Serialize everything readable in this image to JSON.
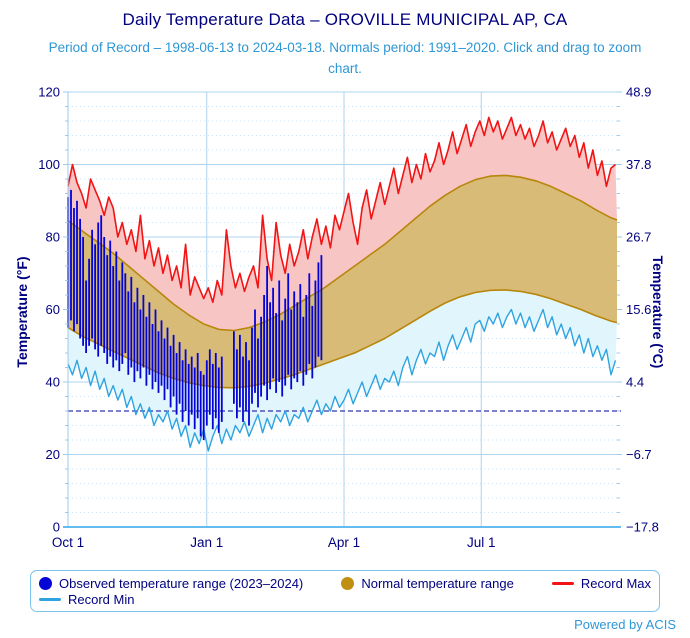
{
  "title": "Daily Temperature Data – OROVILLE MUNICIPAL AP, CA",
  "subtitle": "Period of Record – 1998-06-13 to 2024-03-18. Normals period: 1991–2020. Click and drag to zoom chart.",
  "footer": "Powered by ACIS",
  "colors": {
    "title_text": "#000080",
    "subtitle_text": "#2e97d5",
    "axis_text": "#000080",
    "grid_major": "#aed3ee",
    "grid_minor": "#c9e2f5",
    "axis_line": "#9ccbee",
    "axis_bottom": "#63bbf0",
    "record_max_line": "#f21414",
    "record_max_fill": "#f8c5c5",
    "record_min_line": "#2fa3e0",
    "record_min_fill": "#e1f6fc",
    "normal_fill": "#d8bb76",
    "normal_border": "#b8860b",
    "observed_bar": "#0404d6",
    "freezing_line": "#0000a0",
    "legend_border": "#7cc4ee"
  },
  "axes": {
    "left": {
      "title": "Temperature (°F)",
      "ticks": [
        0,
        20,
        40,
        60,
        80,
        100,
        120
      ]
    },
    "right": {
      "title": "Temperature (°C)",
      "ticks": [
        {
          "f": 0,
          "label": "−17.8"
        },
        {
          "f": 20,
          "label": "−6.7"
        },
        {
          "f": 40,
          "label": "4.4"
        },
        {
          "f": 60,
          "label": "15.6"
        },
        {
          "f": 80,
          "label": "26.7"
        },
        {
          "f": 100,
          "label": "37.8"
        },
        {
          "f": 120,
          "label": "48.9"
        }
      ]
    },
    "x": {
      "ticks": [
        {
          "day": 0,
          "label": "Oct 1"
        },
        {
          "day": 92,
          "label": "Jan 1"
        },
        {
          "day": 183,
          "label": "Apr 1"
        },
        {
          "day": 274,
          "label": "Jul 1"
        }
      ]
    }
  },
  "legend": {
    "observed": "Observed temperature range (2023–2024)",
    "normal": "Normal temperature range",
    "record_max": "Record Max",
    "record_min": "Record Min"
  },
  "chart_data": {
    "type": "area",
    "title": "Daily Temperature Data – OROVILLE MUNICIPAL AP, CA",
    "x_unit": "days since Oct 1",
    "x_range_days": [
      0,
      364
    ],
    "ylim_f": [
      0,
      120
    ],
    "ylim_c": [
      -17.8,
      48.9
    ],
    "grid": true,
    "freezing_line_f": 32,
    "series": [
      {
        "name": "Record Max",
        "type": "line",
        "color": "#f21414",
        "start": 0,
        "step": 3,
        "values": [
          94,
          100,
          95,
          92,
          88,
          96,
          93,
          90,
          86,
          91,
          88,
          80,
          84,
          78,
          82,
          76,
          86,
          74,
          79,
          72,
          77,
          70,
          75,
          68,
          72,
          66,
          78,
          64,
          69,
          66,
          63,
          66,
          62,
          68,
          64,
          82,
          72,
          66,
          70,
          65,
          69,
          72,
          66,
          86,
          74,
          68,
          84,
          75,
          70,
          78,
          72,
          76,
          82,
          74,
          80,
          85,
          78,
          83,
          77,
          86,
          82,
          87,
          92,
          84,
          78,
          88,
          93,
          85,
          90,
          95,
          89,
          94,
          99,
          92,
          97,
          102,
          95,
          100,
          96,
          103,
          98,
          101,
          106,
          100,
          104,
          109,
          103,
          107,
          111,
          105,
          109,
          112,
          108,
          113,
          109,
          112,
          107,
          110,
          113,
          108,
          111,
          107,
          110,
          105,
          108,
          112,
          106,
          109,
          104,
          107,
          110,
          105,
          108,
          102,
          106,
          99,
          104,
          97,
          101,
          94,
          99,
          100
        ]
      },
      {
        "name": "Record Min",
        "type": "line",
        "color": "#2fa3e0",
        "start": 0,
        "step": 3,
        "values": [
          45,
          42,
          46,
          41,
          44,
          39,
          43,
          38,
          41,
          36,
          39,
          35,
          38,
          33,
          36,
          31,
          34,
          30,
          33,
          28,
          31,
          29,
          32,
          27,
          30,
          25,
          28,
          22,
          26,
          23,
          27,
          21,
          25,
          28,
          23,
          27,
          24,
          28,
          26,
          29,
          25,
          28,
          31,
          26,
          30,
          27,
          31,
          29,
          32,
          28,
          31,
          30,
          33,
          29,
          32,
          35,
          31,
          34,
          32,
          36,
          33,
          35,
          38,
          34,
          37,
          40,
          36,
          39,
          42,
          38,
          41,
          40,
          43,
          39,
          44,
          47,
          42,
          46,
          49,
          45,
          48,
          47,
          51,
          46,
          50,
          53,
          49,
          52,
          55,
          51,
          56,
          57,
          54,
          58,
          56,
          59,
          55,
          58,
          60,
          56,
          59,
          55,
          58,
          54,
          57,
          60,
          55,
          58,
          53,
          56,
          52,
          55,
          50,
          53,
          48,
          52,
          47,
          50,
          46,
          49,
          42,
          46
        ]
      },
      {
        "name": "Normal Max",
        "type": "line",
        "color": "#b8860b",
        "days": [
          0,
          10,
          20,
          30,
          40,
          50,
          60,
          70,
          80,
          90,
          100,
          110,
          120,
          130,
          140,
          150,
          160,
          170,
          180,
          190,
          200,
          210,
          220,
          230,
          240,
          250,
          260,
          270,
          280,
          290,
          300,
          310,
          320,
          330,
          340,
          350,
          360,
          364
        ],
        "values": [
          84.5,
          81.5,
          78.5,
          75.5,
          72,
          68.5,
          65,
          61.5,
          58.5,
          56,
          54.5,
          54.2,
          55,
          56.5,
          58.5,
          61,
          63.5,
          66,
          69,
          72,
          75,
          78,
          81.5,
          85,
          88.5,
          91.5,
          94,
          95.8,
          96.8,
          97,
          96.5,
          95.5,
          94,
          92,
          90,
          87.5,
          85.3,
          84.7
        ]
      },
      {
        "name": "Normal Min",
        "type": "line",
        "color": "#b8860b",
        "days": [
          0,
          10,
          20,
          30,
          40,
          50,
          60,
          70,
          80,
          90,
          100,
          110,
          120,
          130,
          140,
          150,
          160,
          170,
          180,
          190,
          200,
          210,
          220,
          230,
          240,
          250,
          260,
          270,
          280,
          290,
          300,
          310,
          320,
          330,
          340,
          350,
          360,
          364
        ],
        "values": [
          55,
          52.5,
          50.5,
          48.5,
          46.5,
          44.5,
          42.5,
          41,
          39.8,
          39,
          38.5,
          38.4,
          38.8,
          39.6,
          40.8,
          42,
          43.5,
          45,
          46.5,
          48,
          50,
          52,
          54.5,
          57,
          59.5,
          61.8,
          63.5,
          64.7,
          65.3,
          65.4,
          65,
          64.2,
          63,
          61.5,
          60,
          58.3,
          56.8,
          56.4
        ]
      },
      {
        "name": "Observed temperature range (2023–2024)",
        "type": "bar-range",
        "color": "#0404d6",
        "points_day_low_high": [
          [
            0,
            55,
            91
          ],
          [
            2,
            57,
            93
          ],
          [
            4,
            54,
            88
          ],
          [
            6,
            56,
            90
          ],
          [
            8,
            52,
            85
          ],
          [
            10,
            50,
            80
          ],
          [
            12,
            48,
            68
          ],
          [
            14,
            50,
            74
          ],
          [
            16,
            52,
            82
          ],
          [
            18,
            49,
            78
          ],
          [
            20,
            47,
            84
          ],
          [
            22,
            50,
            86
          ],
          [
            24,
            48,
            80
          ],
          [
            26,
            45,
            75
          ],
          [
            28,
            47,
            79
          ],
          [
            30,
            44,
            72
          ],
          [
            32,
            46,
            76
          ],
          [
            34,
            43,
            68
          ],
          [
            36,
            45,
            73
          ],
          [
            38,
            48,
            70
          ],
          [
            40,
            42,
            65
          ],
          [
            42,
            44,
            69
          ],
          [
            44,
            40,
            62
          ],
          [
            46,
            43,
            66
          ],
          [
            48,
            41,
            60
          ],
          [
            50,
            44,
            64
          ],
          [
            52,
            39,
            58
          ],
          [
            54,
            42,
            62
          ],
          [
            56,
            38,
            56
          ],
          [
            58,
            40,
            60
          ],
          [
            60,
            37,
            54
          ],
          [
            62,
            39,
            57
          ],
          [
            64,
            35,
            52
          ],
          [
            66,
            38,
            55
          ],
          [
            68,
            33,
            50
          ],
          [
            70,
            36,
            53
          ],
          [
            72,
            31,
            48
          ],
          [
            74,
            34,
            51
          ],
          [
            76,
            29,
            46
          ],
          [
            78,
            32,
            49
          ],
          [
            80,
            28,
            45
          ],
          [
            82,
            31,
            47
          ],
          [
            84,
            27,
            44
          ],
          [
            86,
            30,
            48
          ],
          [
            88,
            25,
            43
          ],
          [
            90,
            24,
            42
          ],
          [
            92,
            28,
            46
          ],
          [
            94,
            31,
            49
          ],
          [
            96,
            27,
            45
          ],
          [
            98,
            30,
            48
          ],
          [
            100,
            26,
            44
          ],
          [
            102,
            29,
            47
          ],
          [
            110,
            34,
            54
          ],
          [
            112,
            30,
            49
          ],
          [
            114,
            33,
            53
          ],
          [
            116,
            29,
            47
          ],
          [
            118,
            32,
            51
          ],
          [
            120,
            28,
            46
          ],
          [
            122,
            34,
            55
          ],
          [
            124,
            37,
            60
          ],
          [
            126,
            33,
            52
          ],
          [
            128,
            36,
            58
          ],
          [
            130,
            39,
            64
          ],
          [
            132,
            35,
            72
          ],
          [
            134,
            38,
            62
          ],
          [
            136,
            41,
            66
          ],
          [
            138,
            37,
            59
          ],
          [
            140,
            40,
            68
          ],
          [
            142,
            36,
            57
          ],
          [
            144,
            39,
            63
          ],
          [
            146,
            42,
            70
          ],
          [
            148,
            38,
            60
          ],
          [
            150,
            41,
            65
          ],
          [
            152,
            40,
            62
          ],
          [
            154,
            43,
            67
          ],
          [
            156,
            39,
            58
          ],
          [
            158,
            42,
            64
          ],
          [
            160,
            45,
            70
          ],
          [
            162,
            41,
            61
          ],
          [
            164,
            44,
            68
          ],
          [
            166,
            47,
            73
          ],
          [
            168,
            46,
            75
          ]
        ]
      }
    ]
  }
}
